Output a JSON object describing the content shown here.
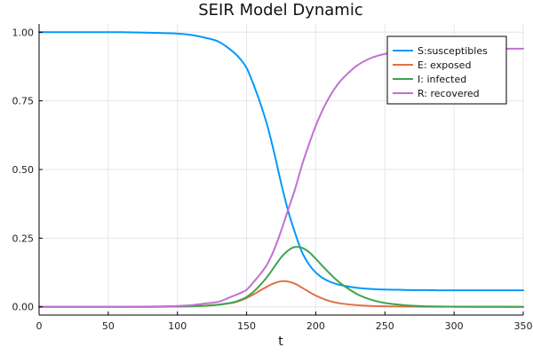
{
  "chart_data": {
    "type": "line",
    "title": "SEIR Model Dynamic",
    "xlabel": "t",
    "ylabel": "",
    "xlim": [
      0,
      350
    ],
    "ylim": [
      -0.03,
      1.03
    ],
    "xticks": [
      0,
      50,
      100,
      150,
      200,
      250,
      300,
      350
    ],
    "yticks": [
      0.0,
      0.25,
      0.5,
      0.75,
      1.0
    ],
    "xtick_labels": [
      "0",
      "50",
      "100",
      "150",
      "200",
      "250",
      "300",
      "350"
    ],
    "ytick_labels": [
      "0.00",
      "0.25",
      "0.50",
      "0.75",
      "1.00"
    ],
    "grid": true,
    "legend_position": "top-right",
    "x": [
      0,
      20,
      40,
      60,
      80,
      100,
      110,
      120,
      130,
      140,
      145,
      150,
      155,
      160,
      165,
      170,
      175,
      180,
      185,
      190,
      195,
      200,
      205,
      210,
      215,
      220,
      230,
      240,
      250,
      260,
      270,
      280,
      290,
      300,
      325,
      350
    ],
    "series": [
      {
        "name": "S:susceptibles",
        "color": "#009AFA",
        "values": [
          1.0,
          1.0,
          1.0,
          1.0,
          0.998,
          0.995,
          0.99,
          0.98,
          0.965,
          0.93,
          0.905,
          0.87,
          0.81,
          0.74,
          0.66,
          0.56,
          0.45,
          0.35,
          0.27,
          0.2,
          0.155,
          0.125,
          0.105,
          0.092,
          0.083,
          0.077,
          0.069,
          0.065,
          0.063,
          0.062,
          0.061,
          0.061,
          0.06,
          0.06,
          0.06,
          0.06
        ]
      },
      {
        "name": "E: exposed",
        "color": "#E36F47",
        "values": [
          0.0,
          0.0,
          0.0,
          0.0,
          0.0,
          0.001,
          0.002,
          0.004,
          0.008,
          0.015,
          0.022,
          0.032,
          0.045,
          0.06,
          0.074,
          0.086,
          0.093,
          0.092,
          0.084,
          0.07,
          0.055,
          0.041,
          0.03,
          0.021,
          0.015,
          0.011,
          0.006,
          0.003,
          0.002,
          0.001,
          0.0005,
          0.0003,
          0.0002,
          0.0001,
          0.0,
          0.0
        ]
      },
      {
        "name": "I: infected",
        "color": "#3EA44E",
        "values": [
          0.0,
          0.0,
          0.0,
          0.0,
          0.0,
          0.001,
          0.002,
          0.004,
          0.008,
          0.016,
          0.024,
          0.036,
          0.055,
          0.08,
          0.11,
          0.145,
          0.18,
          0.205,
          0.218,
          0.215,
          0.2,
          0.175,
          0.148,
          0.122,
          0.098,
          0.078,
          0.046,
          0.026,
          0.014,
          0.008,
          0.004,
          0.002,
          0.001,
          0.0006,
          0.0002,
          0.0
        ]
      },
      {
        "name": "R: recovered",
        "color": "#C271D2",
        "values": [
          0.0,
          0.0,
          0.0,
          0.0,
          0.001,
          0.003,
          0.006,
          0.012,
          0.019,
          0.039,
          0.049,
          0.062,
          0.09,
          0.12,
          0.156,
          0.209,
          0.277,
          0.353,
          0.428,
          0.515,
          0.59,
          0.659,
          0.717,
          0.765,
          0.804,
          0.834,
          0.879,
          0.906,
          0.921,
          0.929,
          0.934,
          0.937,
          0.938,
          0.939,
          0.94,
          0.94
        ]
      }
    ]
  }
}
